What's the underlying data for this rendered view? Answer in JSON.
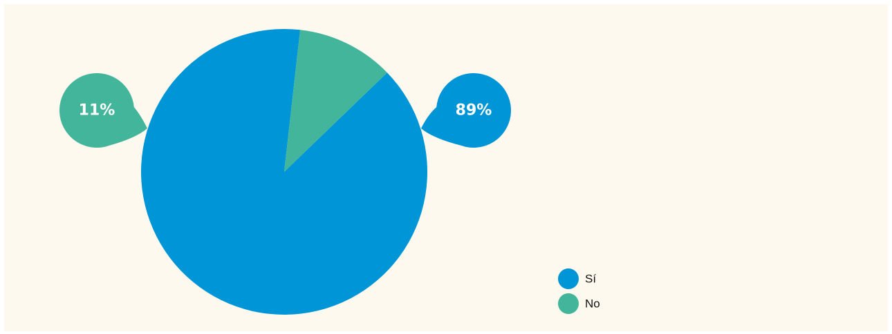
{
  "chart_data": {
    "type": "pie",
    "slices": [
      {
        "label": "Sí",
        "value": 89,
        "display": "89%",
        "color": "#0095d6"
      },
      {
        "label": "No",
        "value": 11,
        "display": "11%",
        "color": "#43b59b"
      }
    ],
    "legend_placement": "bottom-right",
    "background": "#fdf9ef"
  }
}
